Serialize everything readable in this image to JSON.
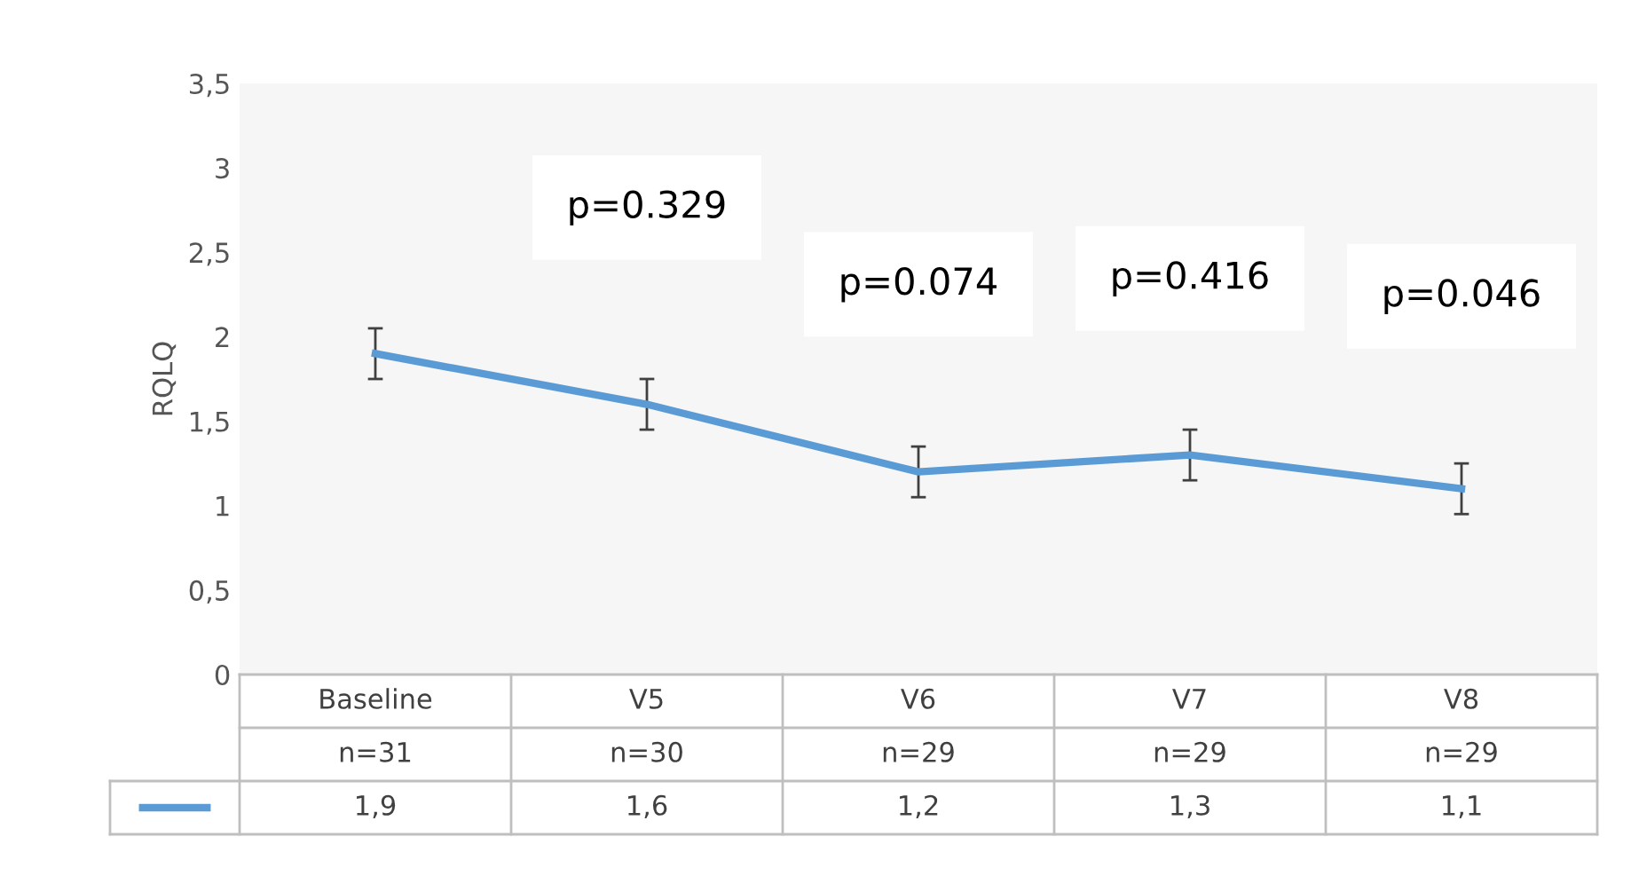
{
  "chart_data": {
    "type": "line",
    "ylabel": "RQLQ",
    "categories": [
      "Baseline\nn=31",
      "V5\nn=30",
      "V6\nn=29",
      "V7\nn=29",
      "V8\nn=29"
    ],
    "series": [
      {
        "color": "#5b9bd5",
        "values": [
          1.9,
          1.6,
          1.2,
          1.3,
          1.1
        ],
        "errors": [
          0.15,
          0.15,
          0.15,
          0.15,
          0.15
        ],
        "value_labels": [
          "1,9",
          "1,6",
          "1,2",
          "1,3",
          "1,1"
        ]
      }
    ],
    "ylim": [
      0,
      3.5
    ],
    "yticks": [
      0,
      {
        "value": 0.5,
        "label": "0,5"
      },
      1,
      {
        "value": 1.5,
        "label": "1,5"
      },
      2,
      {
        "value": 2.5,
        "label": "2,5"
      },
      3,
      {
        "value": 3.5,
        "label": "3,5"
      }
    ],
    "annotations": [
      "p=0.329",
      "p=0.074",
      "p=0.416",
      "p=0.046"
    ],
    "grid": false,
    "legend": false,
    "marker": "none",
    "line_style": "solid"
  }
}
